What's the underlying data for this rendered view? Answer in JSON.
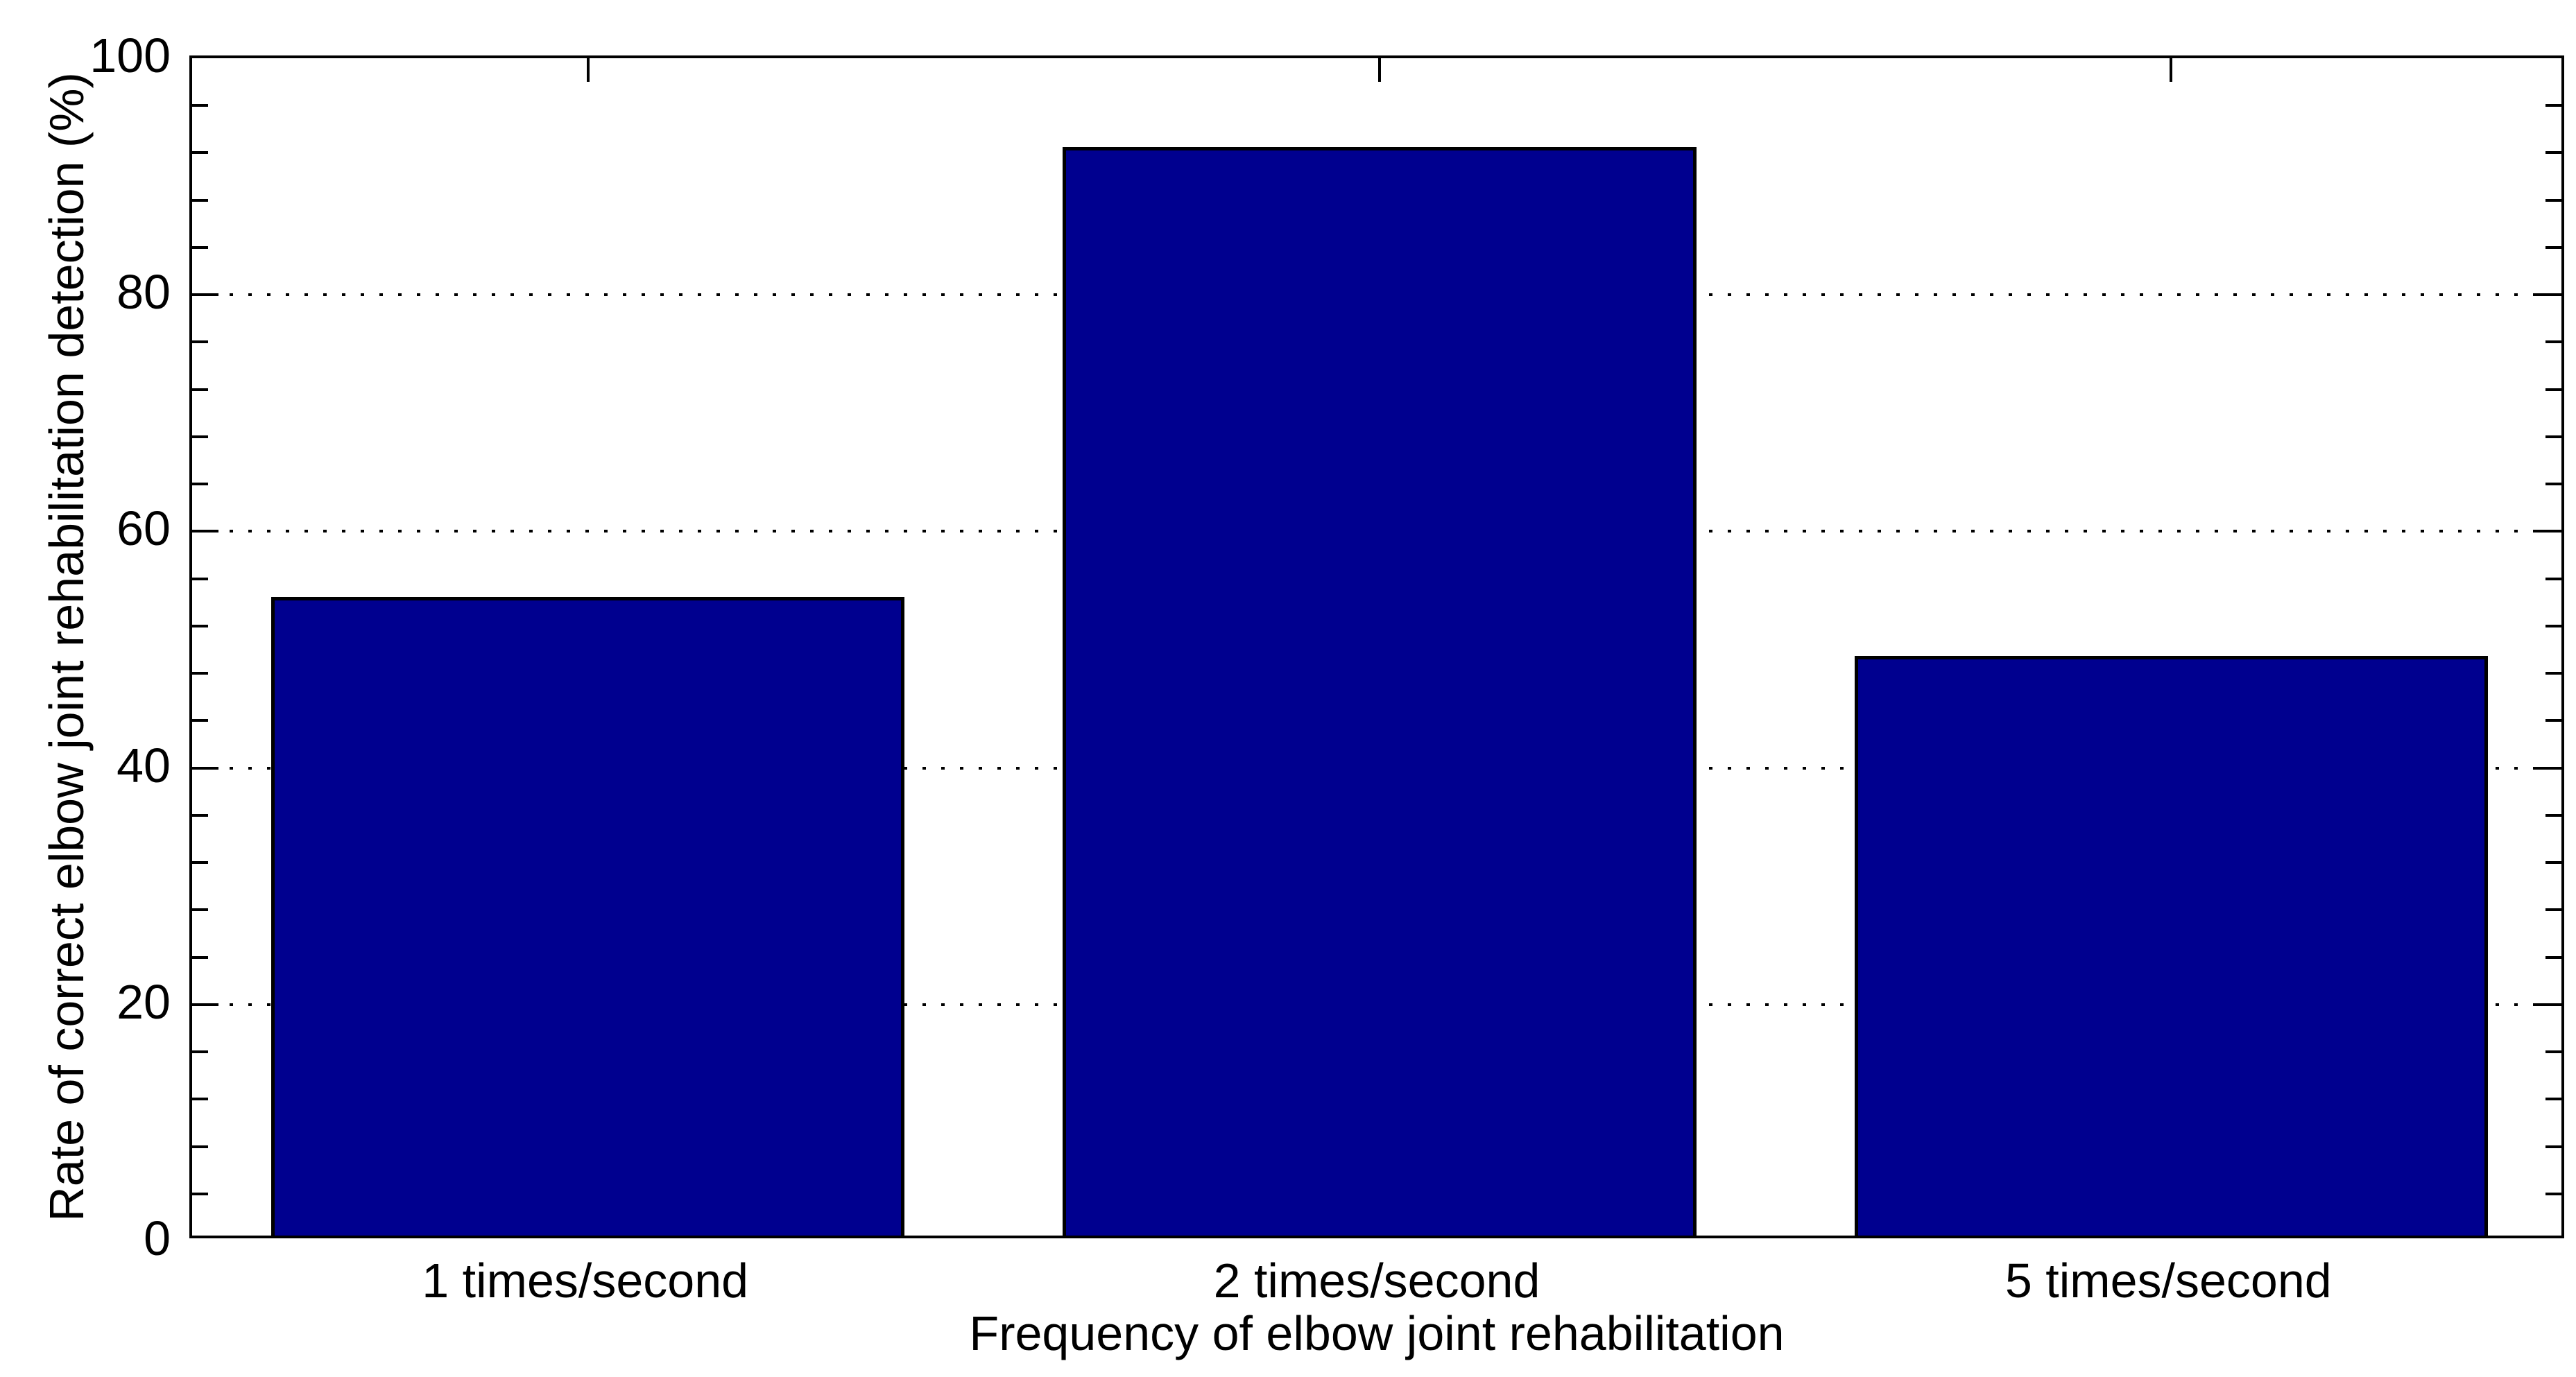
{
  "figure": {
    "background_color": "#ffffff",
    "axis_color": "#000000",
    "text_color": "#000000"
  },
  "chart_data": {
    "type": "bar",
    "title": "",
    "categories": [
      "1 times/second",
      "2 times/second",
      "5 times/second"
    ],
    "values": [
      54,
      92,
      49
    ],
    "xlabel": "Frequency of elbow joint rehabilitation",
    "ylabel": "Rate of correct elbow joint rehabilitation detection (%)",
    "ylim": [
      0,
      100
    ],
    "yticks": [
      0,
      20,
      40,
      60,
      80,
      100
    ],
    "ytick_labels": [
      "0",
      "20",
      "40",
      "60",
      "80",
      "100"
    ],
    "y_minor_tick_step": 4,
    "grid": "horizontal dotted lines at major y ticks",
    "legend": "none",
    "bar_color": "#00008F",
    "bar_edge_color": "#000000",
    "bar_width_fraction": 0.8,
    "box": "on (ticks mirrored on right and top axes)"
  }
}
